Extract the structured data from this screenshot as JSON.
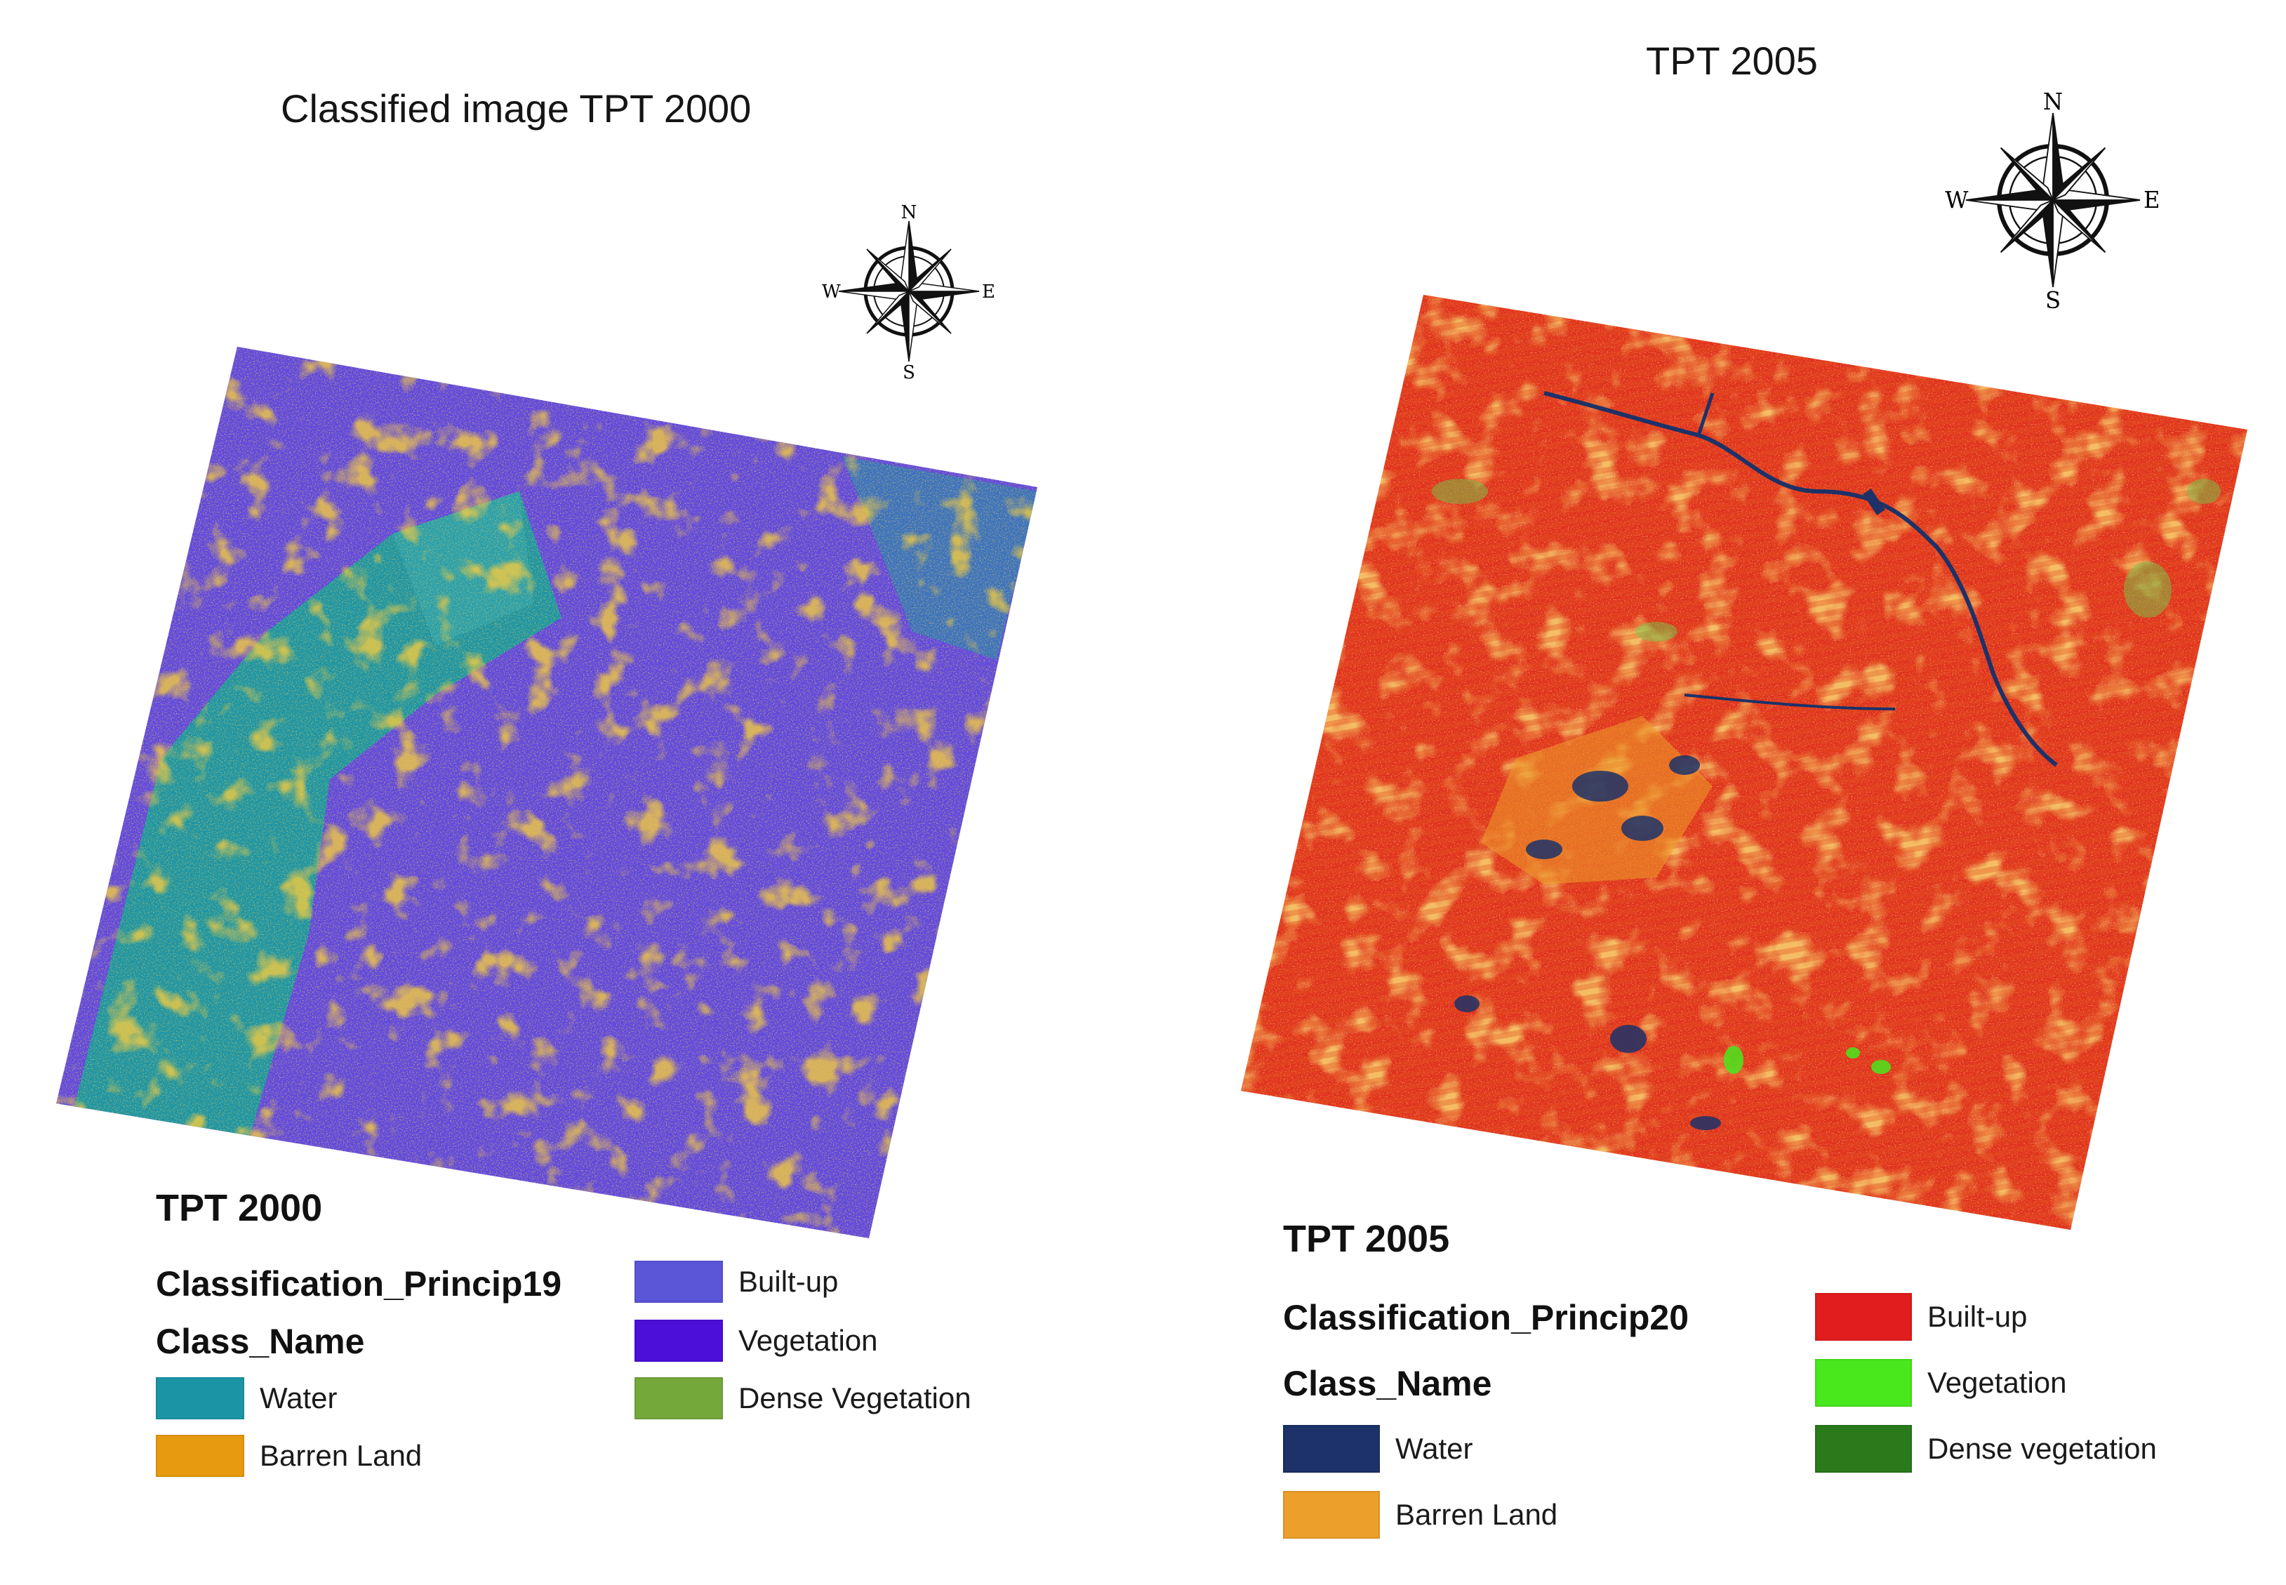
{
  "maps": [
    {
      "title": "Classified image TPT 2000",
      "legend": {
        "title": "TPT 2000",
        "field": "Classification_Princip19",
        "class_header": "Class_Name",
        "classes": [
          {
            "label": "Water",
            "color": "#1b95a6"
          },
          {
            "label": "Barren Land",
            "color": "#e69a0f"
          },
          {
            "label": "Built-up",
            "color": "#5b55d8"
          },
          {
            "label": "Vegetation",
            "color": "#4a10d9"
          },
          {
            "label": "Dense Vegetation",
            "color": "#74a83a"
          }
        ]
      },
      "compass": {
        "n": "N",
        "s": "S",
        "e": "E",
        "w": "W"
      }
    },
    {
      "title": "TPT 2005",
      "legend": {
        "title": "TPT 2005",
        "field": "Classification_Princip20",
        "class_header": "Class_Name",
        "classes": [
          {
            "label": "Water",
            "color": "#1c3268"
          },
          {
            "label": "Barren Land",
            "color": "#ec9f2a"
          },
          {
            "label": "Built-up",
            "color": "#e21d1d"
          },
          {
            "label": "Vegetation",
            "color": "#48e81c"
          },
          {
            "label": "Dense vegetation",
            "color": "#2a7a1c"
          }
        ]
      },
      "compass": {
        "n": "N",
        "s": "S",
        "e": "E",
        "w": "W"
      }
    }
  ]
}
